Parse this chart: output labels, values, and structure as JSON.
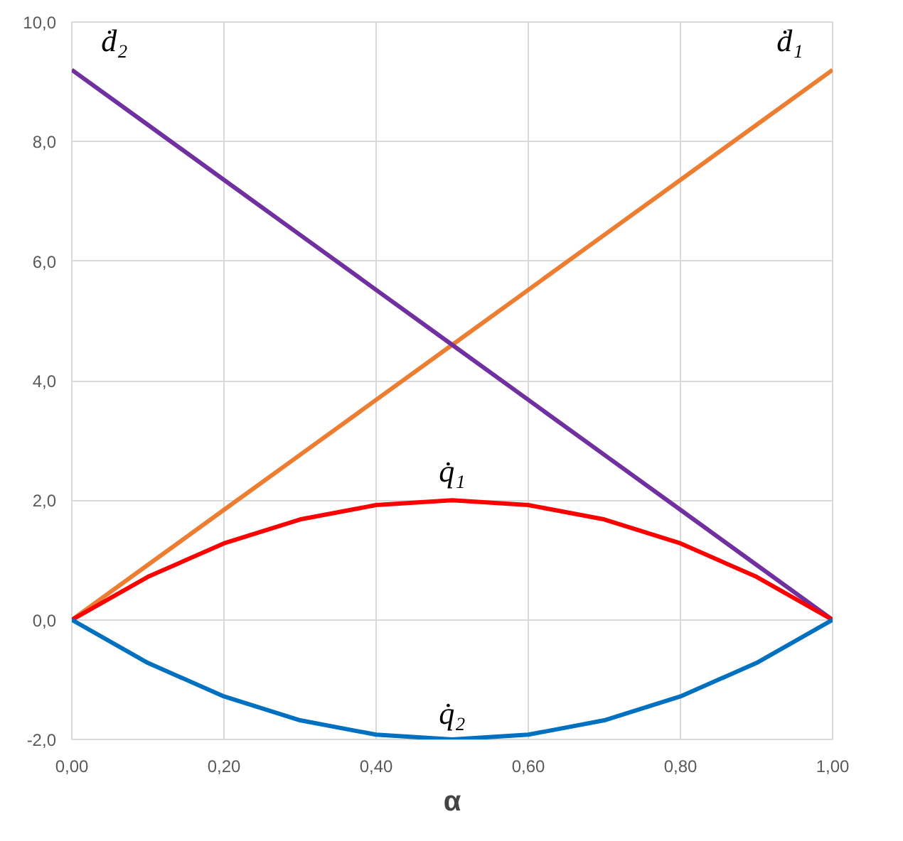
{
  "chart_data": {
    "type": "line",
    "xlabel": "α",
    "x": [
      0,
      0.1,
      0.2,
      0.3,
      0.4,
      0.5,
      0.6,
      0.7,
      0.8,
      0.9,
      1.0
    ],
    "series": [
      {
        "name": "ḋ₁",
        "color": "#ed7d31",
        "values": [
          0,
          0.92,
          1.84,
          2.76,
          3.68,
          4.6,
          5.52,
          6.44,
          7.36,
          8.28,
          9.2
        ]
      },
      {
        "name": "ḋ₂",
        "color": "#7030a0",
        "values": [
          9.2,
          8.28,
          7.36,
          6.44,
          5.52,
          4.6,
          3.68,
          2.76,
          1.84,
          0.92,
          0
        ]
      },
      {
        "name": "q̇₁",
        "color": "#ff0000",
        "values": [
          0,
          0.72,
          1.28,
          1.68,
          1.92,
          2.0,
          1.92,
          1.68,
          1.28,
          0.72,
          0
        ]
      },
      {
        "name": "q̇₂",
        "color": "#0070c0",
        "values": [
          0,
          -0.72,
          -1.28,
          -1.68,
          -1.92,
          -2.0,
          -1.92,
          -1.68,
          -1.28,
          -0.72,
          0
        ]
      }
    ],
    "xlim": [
      0,
      1
    ],
    "ylim": [
      -2,
      10
    ],
    "xticks": [
      {
        "value": 0,
        "label": "0,00"
      },
      {
        "value": 0.2,
        "label": "0,20"
      },
      {
        "value": 0.4,
        "label": "0,40"
      },
      {
        "value": 0.6,
        "label": "0,60"
      },
      {
        "value": 0.8,
        "label": "0,80"
      },
      {
        "value": 1,
        "label": "1,00"
      }
    ],
    "yticks": [
      {
        "value": -2,
        "label": "-2,0"
      },
      {
        "value": 0,
        "label": "0,0"
      },
      {
        "value": 2,
        "label": "2,0"
      },
      {
        "value": 4,
        "label": "4,0"
      },
      {
        "value": 6,
        "label": "6,0"
      },
      {
        "value": 8,
        "label": "8,0"
      },
      {
        "value": 10,
        "label": "10,0"
      }
    ],
    "grid": true,
    "legend": false,
    "marker": "none",
    "line_style": "solid"
  }
}
